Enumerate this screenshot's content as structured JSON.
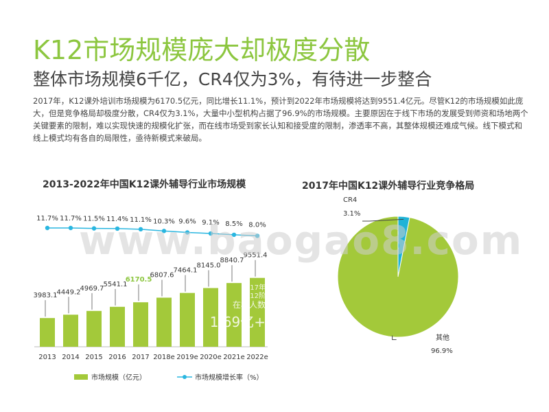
{
  "page": {
    "title": "K12市场规模庞大却极度分散",
    "subtitle": "整体市场规模6千亿，CR4仅为3%，有待进一步整合",
    "paragraph": "2017年，K12课外培训市场规模为6170.5亿元，同比增长11.1%，预计到2022年市场规模将达到9551.4亿元。尽管K12的市场规模如此庞大，但是竞争格局却极度分散，CR4仅为3.1%，大量中小型机构占据了96.9%的市场规模。主要原因在于线下市场的发展受到师资和场地两个关键要素的限制，难以实现快速的规模化扩张，而在线市场受到家长认知和接受度的限制，渗透率不高，其整体规模还难成气候。线下模式和线上模式均有各自的局限性，亟待新模式来破局。",
    "watermark": "www.baogao8.com"
  },
  "colors": {
    "title_green": "#8cc63f",
    "bar_green": "#a3c93a",
    "highlight_green": "#8cc63f",
    "line_blue": "#29b6e0",
    "pie_green": "#a3c93a",
    "pie_blue": "#1fb3d7"
  },
  "chart_data": [
    {
      "type": "bar",
      "title": "2013-2022年中国K12课外辅导行业市场规模",
      "categories": [
        "2013",
        "2014",
        "2015",
        "2016",
        "2017",
        "2018e",
        "2019e",
        "2020e",
        "2021e",
        "2022e"
      ],
      "series": [
        {
          "name": "市场规模（亿元）",
          "values": [
            3983.1,
            4449.2,
            4969.7,
            5541.1,
            6170.5,
            6807.6,
            7464.1,
            8145.0,
            8840.7,
            9551.4
          ]
        },
        {
          "name": "市场规模增长率（%）",
          "values": [
            11.7,
            11.7,
            11.5,
            11.4,
            11.1,
            10.3,
            9.6,
            9.1,
            8.5,
            8.0
          ]
        }
      ],
      "bar_value_labels": [
        "3983.1",
        "4449.2",
        "4969.7",
        "5541.1",
        "6170.5",
        "6807.6",
        "7464.1",
        "8145.0",
        "8840.7",
        "9551.4"
      ],
      "rate_labels": [
        "11.7%",
        "11.7%",
        "11.5%",
        "11.4%",
        "11.1%",
        "10.3%",
        "9.6%",
        "9.1%",
        "8.5%",
        "8.0%"
      ],
      "highlight_index": 4,
      "partial_annotation": [
        "17年",
        "K12阶",
        "在校人数",
        "1.69亿+"
      ],
      "legend_position": "bottom",
      "grid": false
    },
    {
      "type": "pie",
      "title": "2017年中国K12课外辅导行业竞争格局",
      "slices": [
        {
          "label": "CR4",
          "value": 3.1,
          "value_label": "3.1%"
        },
        {
          "label": "其他",
          "value": 96.9,
          "value_label": "96.9%"
        }
      ]
    }
  ]
}
